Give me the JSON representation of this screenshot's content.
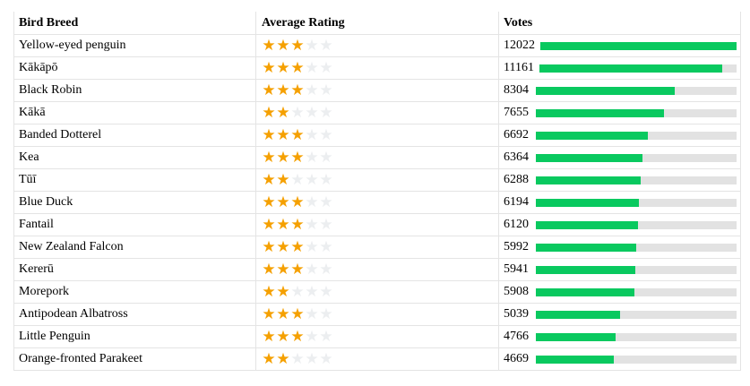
{
  "headers": {
    "breed": "Bird Breed",
    "rating": "Average Rating",
    "votes": "Votes"
  },
  "max_votes": 12022,
  "star_color_on": "#f5a000",
  "star_color_off": "#eceef0",
  "bar_color": "#09c95f",
  "rows": [
    {
      "breed": "Yellow-eyed penguin",
      "rating": 3,
      "votes": 12022
    },
    {
      "breed": "Kākāpō",
      "rating": 3,
      "votes": 11161
    },
    {
      "breed": "Black Robin",
      "rating": 3,
      "votes": 8304
    },
    {
      "breed": "Kākā",
      "rating": 2,
      "votes": 7655
    },
    {
      "breed": "Banded Dotterel",
      "rating": 3,
      "votes": 6692
    },
    {
      "breed": "Kea",
      "rating": 3,
      "votes": 6364
    },
    {
      "breed": "Tūī",
      "rating": 2,
      "votes": 6288
    },
    {
      "breed": "Blue Duck",
      "rating": 3,
      "votes": 6194
    },
    {
      "breed": "Fantail",
      "rating": 3,
      "votes": 6120
    },
    {
      "breed": "New Zealand Falcon",
      "rating": 3,
      "votes": 5992
    },
    {
      "breed": "Kererū",
      "rating": 3,
      "votes": 5941
    },
    {
      "breed": "Morepork",
      "rating": 2,
      "votes": 5908
    },
    {
      "breed": "Antipodean Albatross",
      "rating": 3,
      "votes": 5039
    },
    {
      "breed": "Little Penguin",
      "rating": 3,
      "votes": 4766
    },
    {
      "breed": "Orange-fronted Parakeet",
      "rating": 2,
      "votes": 4669
    }
  ]
}
